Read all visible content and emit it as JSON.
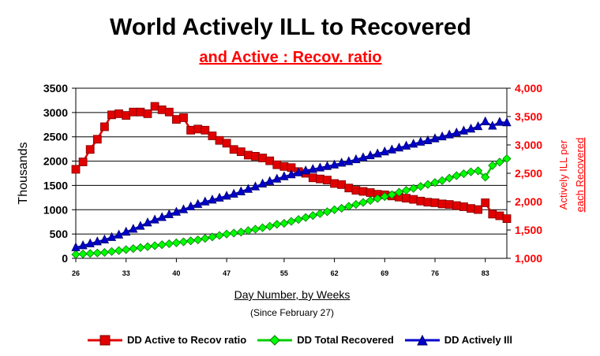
{
  "title": "World Actively ILL to Recovered",
  "subtitle": "and Active : Recov. ratio",
  "chart_data": {
    "type": "line",
    "xlabel": "Day Number, by Weeks",
    "xsublabel": "(Since February 27)",
    "ylabel_left": "Thousands",
    "ylabel_right_line1": "Actively ILL per",
    "ylabel_right_line2": "each Recovered",
    "x_ticks": [
      26,
      33,
      40,
      47,
      55,
      62,
      69,
      76,
      83
    ],
    "y_left_ticks": [
      0,
      500,
      1000,
      1500,
      2000,
      2500,
      3000,
      3500
    ],
    "y_right_ticks": [
      "1,000",
      "1,500",
      "2,000",
      "2,500",
      "3,000",
      "3,500",
      "4,000"
    ],
    "ylim_left": [
      0,
      3500
    ],
    "ylim_right": [
      1000,
      4000
    ],
    "grid": "horizontal",
    "legend_position": "bottom",
    "series": [
      {
        "name": "DD Active to Recov ratio",
        "axis": "right",
        "color": "#e00000",
        "marker": "square",
        "x": [
          26,
          27,
          28,
          29,
          30,
          31,
          32,
          33,
          34,
          35,
          36,
          37,
          38,
          39,
          40,
          41,
          42,
          43,
          44,
          45,
          46,
          47,
          48,
          49,
          50,
          51,
          52,
          53,
          54,
          55,
          56,
          57,
          58,
          59,
          60,
          61,
          62,
          63,
          64,
          65,
          66,
          67,
          68,
          69,
          70,
          71,
          72,
          73,
          74,
          75,
          76,
          77,
          78,
          79,
          80,
          81,
          82,
          83,
          84,
          85,
          86
        ],
        "values": [
          2570,
          2700,
          2920,
          3100,
          3320,
          3530,
          3550,
          3520,
          3580,
          3580,
          3550,
          3680,
          3620,
          3580,
          3450,
          3480,
          3260,
          3280,
          3260,
          3160,
          3080,
          3030,
          2920,
          2880,
          2820,
          2800,
          2770,
          2720,
          2650,
          2620,
          2600,
          2530,
          2500,
          2420,
          2400,
          2380,
          2320,
          2300,
          2240,
          2200,
          2180,
          2160,
          2130,
          2120,
          2100,
          2080,
          2060,
          2040,
          2010,
          1990,
          1980,
          1960,
          1950,
          1930,
          1910,
          1880,
          1860,
          1980,
          1780,
          1750,
          1700
        ]
      },
      {
        "name": "DD Total Recovered",
        "axis": "left",
        "color": "#00cc00",
        "marker": "diamond",
        "x": [
          26,
          27,
          28,
          29,
          30,
          31,
          32,
          33,
          34,
          35,
          36,
          37,
          38,
          39,
          40,
          41,
          42,
          43,
          44,
          45,
          46,
          47,
          48,
          49,
          50,
          51,
          52,
          53,
          54,
          55,
          56,
          57,
          58,
          59,
          60,
          61,
          62,
          63,
          64,
          65,
          66,
          67,
          68,
          69,
          70,
          71,
          72,
          73,
          74,
          75,
          76,
          77,
          78,
          79,
          80,
          81,
          82,
          83,
          84,
          85,
          86
        ],
        "values": [
          80,
          90,
          100,
          110,
          120,
          140,
          160,
          180,
          200,
          220,
          240,
          260,
          280,
          300,
          320,
          340,
          360,
          380,
          410,
          440,
          470,
          500,
          520,
          540,
          570,
          600,
          630,
          660,
          700,
          720,
          760,
          800,
          840,
          880,
          920,
          960,
          1000,
          1030,
          1070,
          1110,
          1150,
          1190,
          1230,
          1270,
          1310,
          1360,
          1400,
          1440,
          1480,
          1520,
          1560,
          1600,
          1650,
          1700,
          1740,
          1780,
          1800,
          1670,
          1910,
          1980,
          2050
        ]
      },
      {
        "name": "DD Actively Ill",
        "axis": "left",
        "color": "#0000cc",
        "marker": "triangle",
        "x": [
          26,
          27,
          28,
          29,
          30,
          31,
          32,
          33,
          34,
          35,
          36,
          37,
          38,
          39,
          40,
          41,
          42,
          43,
          44,
          45,
          46,
          47,
          48,
          49,
          50,
          51,
          52,
          53,
          54,
          55,
          56,
          57,
          58,
          59,
          60,
          61,
          62,
          63,
          64,
          65,
          66,
          67,
          68,
          69,
          70,
          71,
          72,
          73,
          74,
          75,
          76,
          77,
          78,
          79,
          80,
          81,
          82,
          83,
          84,
          85,
          86
        ],
        "values": [
          220,
          260,
          300,
          340,
          380,
          430,
          480,
          540,
          600,
          660,
          730,
          790,
          840,
          900,
          950,
          1000,
          1060,
          1110,
          1160,
          1200,
          1240,
          1280,
          1320,
          1370,
          1420,
          1470,
          1530,
          1580,
          1630,
          1680,
          1720,
          1760,
          1800,
          1830,
          1860,
          1890,
          1920,
          1960,
          1990,
          2030,
          2070,
          2110,
          2150,
          2190,
          2230,
          2270,
          2310,
          2350,
          2390,
          2420,
          2460,
          2500,
          2540,
          2580,
          2620,
          2660,
          2710,
          2810,
          2720,
          2800,
          2790
        ]
      }
    ]
  }
}
